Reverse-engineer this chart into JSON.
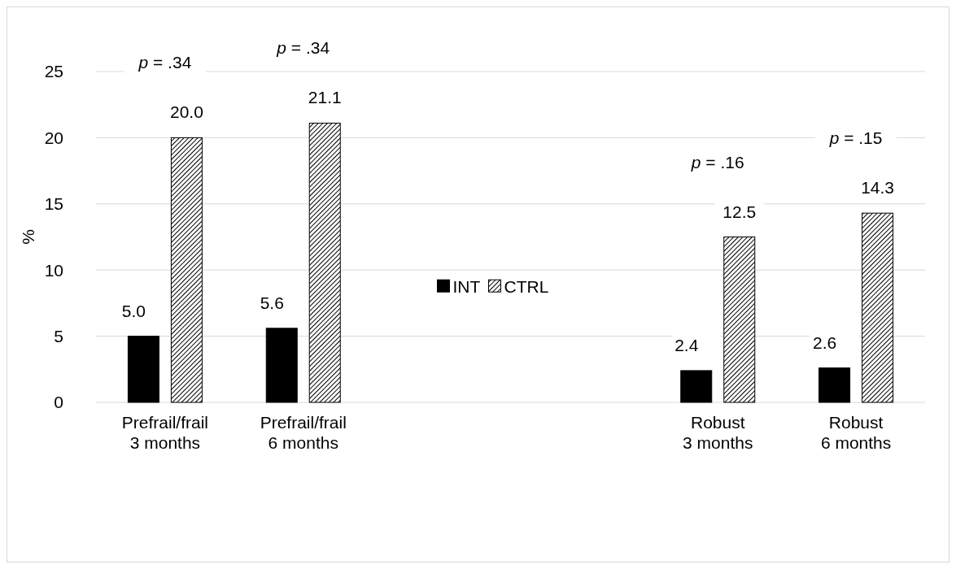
{
  "chart_data": {
    "type": "bar",
    "ylabel": "%",
    "categories": [
      "Prefrail/frail\n3 months",
      "Prefrail/frail\n6 months",
      null,
      null,
      "Robust\n3 months",
      "Robust\n6 months"
    ],
    "series": [
      {
        "name": "INT",
        "color": "#000000",
        "values": [
          5.0,
          5.6,
          null,
          null,
          2.4,
          2.6
        ]
      },
      {
        "name": "CTRL",
        "color": "#000000",
        "values": [
          20.0,
          21.1,
          null,
          null,
          12.5,
          14.3
        ]
      }
    ],
    "value_labels": [
      [
        "5.0",
        "5.6",
        null,
        null,
        "2.4",
        "2.6"
      ],
      [
        "20.0",
        "21.1",
        null,
        null,
        "12.5",
        "14.3"
      ]
    ],
    "ylim": [
      0,
      25
    ],
    "yticks": [
      0,
      5,
      10,
      15,
      20,
      25
    ],
    "grid": "y",
    "legend": "center",
    "annotations": [
      "p = .34",
      "p = .34",
      "p = .16",
      "p = .15"
    ]
  }
}
